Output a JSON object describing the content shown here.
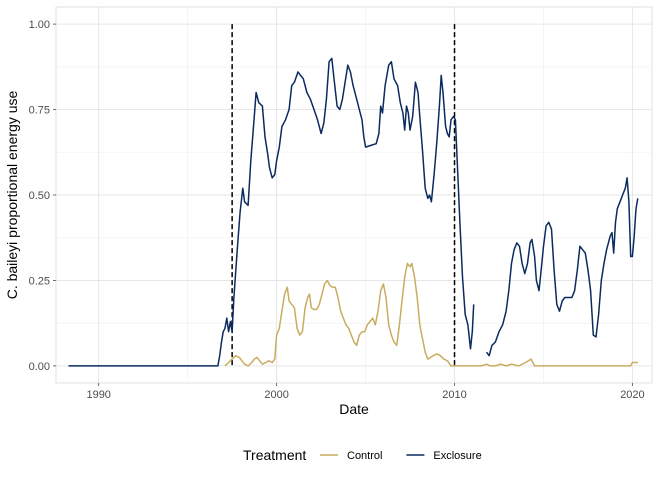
{
  "chart_data": {
    "type": "line",
    "xlabel": "Date",
    "ylabel": "C. baileyi proportional energy use",
    "x_ticks": [
      1990,
      2000,
      2010,
      2020
    ],
    "y_ticks": [
      0.0,
      0.25,
      0.5,
      0.75,
      1.0
    ],
    "y_tick_labels": [
      "0.00",
      "0.25",
      "0.50",
      "0.75",
      "1.00"
    ],
    "xlim": [
      1987.6,
      2021.1
    ],
    "ylim": [
      -0.05,
      1.05
    ],
    "grid": true,
    "legend": {
      "title": "Treatment",
      "position": "bottom"
    },
    "vlines": [
      1997.5,
      2010.0
    ],
    "series": [
      {
        "name": "Exclosure",
        "color": "#0b2b5e",
        "points": [
          [
            1988.3,
            0.0
          ],
          [
            1990.0,
            0.0
          ],
          [
            1992.0,
            0.0
          ],
          [
            1994.0,
            0.0
          ],
          [
            1996.0,
            0.0
          ],
          [
            1996.7,
            0.0
          ],
          [
            1996.8,
            0.03
          ],
          [
            1996.9,
            0.07
          ],
          [
            1997.0,
            0.1
          ],
          [
            1997.1,
            0.11
          ],
          [
            1997.2,
            0.14
          ],
          [
            1997.3,
            0.1
          ],
          [
            1997.4,
            0.13
          ],
          [
            1997.5,
            0.1
          ],
          [
            1997.6,
            0.2
          ],
          [
            1997.8,
            0.35
          ],
          [
            1997.95,
            0.45
          ],
          [
            1998.1,
            0.52
          ],
          [
            1998.2,
            0.48
          ],
          [
            1998.4,
            0.47
          ],
          [
            1998.55,
            0.6
          ],
          [
            1998.7,
            0.7
          ],
          [
            1998.85,
            0.8
          ],
          [
            1999.0,
            0.77
          ],
          [
            1999.2,
            0.76
          ],
          [
            1999.35,
            0.67
          ],
          [
            1999.5,
            0.62
          ],
          [
            1999.6,
            0.58
          ],
          [
            1999.75,
            0.55
          ],
          [
            1999.9,
            0.56
          ],
          [
            2000.0,
            0.6
          ],
          [
            2000.15,
            0.64
          ],
          [
            2000.3,
            0.7
          ],
          [
            2000.5,
            0.72
          ],
          [
            2000.7,
            0.75
          ],
          [
            2000.85,
            0.82
          ],
          [
            2001.0,
            0.83
          ],
          [
            2001.2,
            0.86
          ],
          [
            2001.35,
            0.85
          ],
          [
            2001.5,
            0.84
          ],
          [
            2001.7,
            0.8
          ],
          [
            2001.9,
            0.78
          ],
          [
            2002.1,
            0.75
          ],
          [
            2002.3,
            0.72
          ],
          [
            2002.5,
            0.68
          ],
          [
            2002.65,
            0.71
          ],
          [
            2002.8,
            0.78
          ],
          [
            2002.95,
            0.89
          ],
          [
            2003.1,
            0.9
          ],
          [
            2003.25,
            0.83
          ],
          [
            2003.4,
            0.76
          ],
          [
            2003.55,
            0.75
          ],
          [
            2003.7,
            0.78
          ],
          [
            2003.85,
            0.83
          ],
          [
            2004.0,
            0.88
          ],
          [
            2004.15,
            0.86
          ],
          [
            2004.3,
            0.82
          ],
          [
            2004.5,
            0.78
          ],
          [
            2004.65,
            0.75
          ],
          [
            2004.8,
            0.72
          ],
          [
            2004.9,
            0.67
          ],
          [
            2005.0,
            0.64
          ],
          [
            2005.3,
            0.645
          ],
          [
            2005.6,
            0.65
          ],
          [
            2005.75,
            0.68
          ],
          [
            2005.85,
            0.76
          ],
          [
            2005.95,
            0.74
          ],
          [
            2006.1,
            0.82
          ],
          [
            2006.3,
            0.88
          ],
          [
            2006.45,
            0.89
          ],
          [
            2006.6,
            0.84
          ],
          [
            2006.8,
            0.82
          ],
          [
            2006.95,
            0.77
          ],
          [
            2007.1,
            0.74
          ],
          [
            2007.2,
            0.69
          ],
          [
            2007.3,
            0.76
          ],
          [
            2007.4,
            0.74
          ],
          [
            2007.5,
            0.69
          ],
          [
            2007.65,
            0.73
          ],
          [
            2007.8,
            0.83
          ],
          [
            2007.95,
            0.8
          ],
          [
            2008.05,
            0.73
          ],
          [
            2008.2,
            0.63
          ],
          [
            2008.35,
            0.52
          ],
          [
            2008.5,
            0.49
          ],
          [
            2008.6,
            0.5
          ],
          [
            2008.7,
            0.48
          ],
          [
            2008.85,
            0.56
          ],
          [
            2009.0,
            0.65
          ],
          [
            2009.15,
            0.76
          ],
          [
            2009.25,
            0.85
          ],
          [
            2009.35,
            0.8
          ],
          [
            2009.5,
            0.7
          ],
          [
            2009.6,
            0.68
          ],
          [
            2009.7,
            0.67
          ],
          [
            2009.8,
            0.72
          ],
          [
            2009.95,
            0.73
          ],
          [
            2010.05,
            0.72
          ],
          [
            2010.15,
            0.6
          ],
          [
            2010.3,
            0.42
          ],
          [
            2010.45,
            0.26
          ],
          [
            2010.6,
            0.15
          ],
          [
            2010.75,
            0.12
          ],
          [
            2010.9,
            0.05
          ],
          [
            2011.0,
            0.1
          ],
          [
            2011.08,
            0.18
          ],
          null,
          [
            2011.8,
            0.04
          ],
          [
            2011.95,
            0.03
          ],
          [
            2012.1,
            0.06
          ],
          [
            2012.3,
            0.07
          ],
          [
            2012.5,
            0.1
          ],
          [
            2012.7,
            0.12
          ],
          [
            2012.9,
            0.16
          ],
          [
            2013.05,
            0.22
          ],
          [
            2013.2,
            0.3
          ],
          [
            2013.35,
            0.34
          ],
          [
            2013.5,
            0.36
          ],
          [
            2013.65,
            0.35
          ],
          [
            2013.8,
            0.3
          ],
          [
            2013.95,
            0.27
          ],
          [
            2014.1,
            0.3
          ],
          [
            2014.25,
            0.36
          ],
          [
            2014.35,
            0.37
          ],
          [
            2014.5,
            0.32
          ],
          [
            2014.6,
            0.25
          ],
          [
            2014.75,
            0.22
          ],
          [
            2014.85,
            0.27
          ],
          [
            2015.0,
            0.35
          ],
          [
            2015.15,
            0.41
          ],
          [
            2015.3,
            0.42
          ],
          [
            2015.45,
            0.4
          ],
          [
            2015.6,
            0.28
          ],
          [
            2015.75,
            0.18
          ],
          [
            2015.9,
            0.16
          ],
          [
            2016.05,
            0.19
          ],
          [
            2016.2,
            0.2
          ],
          [
            2016.4,
            0.2
          ],
          [
            2016.6,
            0.2
          ],
          [
            2016.75,
            0.22
          ],
          [
            2016.9,
            0.28
          ],
          [
            2017.05,
            0.35
          ],
          [
            2017.2,
            0.34
          ],
          [
            2017.35,
            0.33
          ],
          [
            2017.5,
            0.28
          ],
          [
            2017.65,
            0.22
          ],
          [
            2017.8,
            0.09
          ],
          [
            2017.95,
            0.085
          ],
          [
            2018.1,
            0.15
          ],
          [
            2018.25,
            0.25
          ],
          [
            2018.4,
            0.3
          ],
          [
            2018.55,
            0.34
          ],
          [
            2018.65,
            0.36
          ],
          [
            2018.75,
            0.38
          ],
          [
            2018.85,
            0.39
          ],
          [
            2018.95,
            0.33
          ],
          [
            2019.05,
            0.42
          ],
          [
            2019.15,
            0.46
          ],
          [
            2019.3,
            0.48
          ],
          [
            2019.45,
            0.5
          ],
          [
            2019.6,
            0.52
          ],
          [
            2019.7,
            0.55
          ],
          [
            2019.8,
            0.48
          ],
          [
            2019.9,
            0.32
          ],
          [
            2020.0,
            0.32
          ],
          [
            2020.1,
            0.38
          ],
          [
            2020.2,
            0.46
          ],
          [
            2020.3,
            0.49
          ]
        ]
      },
      {
        "name": "Control",
        "color": "#c9ac62",
        "points": [
          [
            1997.1,
            0.0
          ],
          [
            1997.3,
            0.01
          ],
          [
            1997.5,
            0.02
          ],
          [
            1997.7,
            0.03
          ],
          [
            1997.9,
            0.025
          ],
          [
            1998.05,
            0.015
          ],
          [
            1998.2,
            0.005
          ],
          [
            1998.4,
            0.0
          ],
          [
            1998.6,
            0.01
          ],
          [
            1998.75,
            0.02
          ],
          [
            1998.9,
            0.025
          ],
          [
            1999.05,
            0.015
          ],
          [
            1999.2,
            0.005
          ],
          [
            1999.4,
            0.01
          ],
          [
            1999.55,
            0.015
          ],
          [
            1999.75,
            0.01
          ],
          [
            1999.9,
            0.02
          ],
          [
            2000.0,
            0.09
          ],
          [
            2000.15,
            0.11
          ],
          [
            2000.3,
            0.16
          ],
          [
            2000.45,
            0.21
          ],
          [
            2000.6,
            0.23
          ],
          [
            2000.7,
            0.19
          ],
          [
            2000.85,
            0.18
          ],
          [
            2001.0,
            0.17
          ],
          [
            2001.15,
            0.11
          ],
          [
            2001.3,
            0.09
          ],
          [
            2001.45,
            0.1
          ],
          [
            2001.6,
            0.17
          ],
          [
            2001.75,
            0.2
          ],
          [
            2001.85,
            0.21
          ],
          [
            2001.95,
            0.17
          ],
          [
            2002.1,
            0.165
          ],
          [
            2002.25,
            0.165
          ],
          [
            2002.4,
            0.18
          ],
          [
            2002.55,
            0.21
          ],
          [
            2002.7,
            0.24
          ],
          [
            2002.85,
            0.25
          ],
          [
            2003.0,
            0.235
          ],
          [
            2003.15,
            0.23
          ],
          [
            2003.3,
            0.23
          ],
          [
            2003.45,
            0.2
          ],
          [
            2003.6,
            0.16
          ],
          [
            2003.75,
            0.14
          ],
          [
            2003.9,
            0.12
          ],
          [
            2004.05,
            0.11
          ],
          [
            2004.2,
            0.09
          ],
          [
            2004.35,
            0.07
          ],
          [
            2004.5,
            0.06
          ],
          [
            2004.65,
            0.09
          ],
          [
            2004.8,
            0.1
          ],
          [
            2004.95,
            0.1
          ],
          [
            2005.1,
            0.12
          ],
          [
            2005.25,
            0.13
          ],
          [
            2005.4,
            0.14
          ],
          [
            2005.55,
            0.12
          ],
          [
            2005.7,
            0.16
          ],
          [
            2005.85,
            0.22
          ],
          [
            2006.0,
            0.24
          ],
          [
            2006.15,
            0.2
          ],
          [
            2006.3,
            0.12
          ],
          [
            2006.45,
            0.09
          ],
          [
            2006.6,
            0.07
          ],
          [
            2006.75,
            0.06
          ],
          [
            2006.9,
            0.12
          ],
          [
            2007.05,
            0.19
          ],
          [
            2007.2,
            0.26
          ],
          [
            2007.35,
            0.3
          ],
          [
            2007.5,
            0.29
          ],
          [
            2007.6,
            0.3
          ],
          [
            2007.75,
            0.26
          ],
          [
            2007.9,
            0.2
          ],
          [
            2008.05,
            0.12
          ],
          [
            2008.2,
            0.08
          ],
          [
            2008.35,
            0.04
          ],
          [
            2008.5,
            0.02
          ],
          [
            2008.65,
            0.025
          ],
          [
            2008.8,
            0.03
          ],
          [
            2009.0,
            0.035
          ],
          [
            2009.2,
            0.03
          ],
          [
            2009.4,
            0.02
          ],
          [
            2009.6,
            0.015
          ],
          [
            2009.8,
            0.0
          ],
          [
            2010.0,
            0.0
          ],
          [
            2010.5,
            0.0
          ],
          [
            2011.0,
            0.0
          ],
          [
            2011.5,
            0.0
          ],
          [
            2011.8,
            0.005
          ],
          [
            2012.0,
            0.0
          ],
          [
            2012.3,
            0.0
          ],
          [
            2012.6,
            0.005
          ],
          [
            2012.9,
            0.0
          ],
          [
            2013.2,
            0.005
          ],
          [
            2013.6,
            0.0
          ],
          [
            2014.0,
            0.01
          ],
          [
            2014.3,
            0.02
          ],
          [
            2014.5,
            0.0
          ],
          [
            2015.0,
            0.0
          ],
          [
            2015.5,
            0.0
          ],
          [
            2016.0,
            0.0
          ],
          [
            2017.0,
            0.0
          ],
          [
            2018.0,
            0.0
          ],
          [
            2019.0,
            0.0
          ],
          [
            2019.9,
            0.0
          ],
          [
            2020.0,
            0.01
          ],
          [
            2020.3,
            0.01
          ]
        ]
      }
    ]
  }
}
